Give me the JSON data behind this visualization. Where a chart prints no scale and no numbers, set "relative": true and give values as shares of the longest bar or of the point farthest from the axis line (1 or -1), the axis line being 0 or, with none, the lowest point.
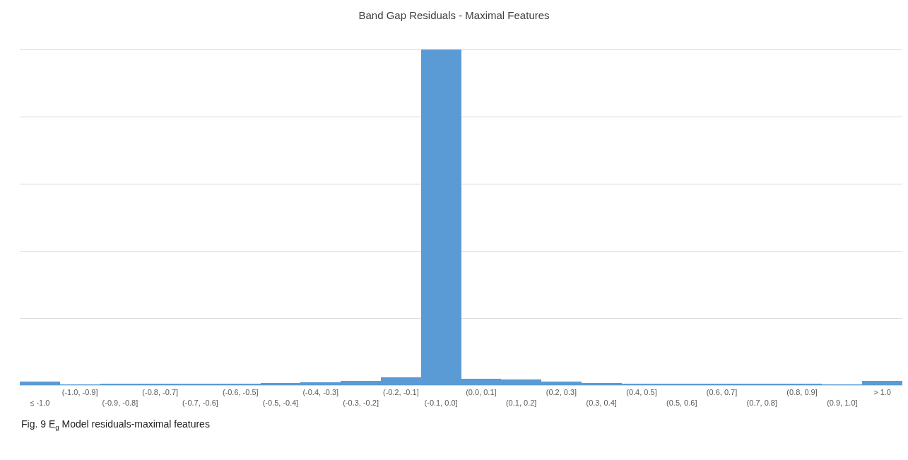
{
  "chart_data": {
    "type": "bar",
    "title": "Band Gap Residuals - Maximal Features",
    "categories": [
      "≤ -1.0",
      "(-1.0, -0.9]",
      "(-0.9, -0.8]",
      "(-0.8, -0.7]",
      "(-0.7, -0.6]",
      "(-0.6, -0.5]",
      "(-0.5, -0.4]",
      "(-0.4, -0.3]",
      "(-0.3, -0.2]",
      "(-0.2, -0.1]",
      "(-0.1, 0.0]",
      "(0.0, 0.1]",
      "(0.1, 0.2]",
      "(0.2, 0.3]",
      "(0.3, 0.4]",
      "(0.4, 0.5]",
      "(0.5, 0.6]",
      "(0.6, 0.7]",
      "(0.7, 0.8]",
      "(0.8, 0.9]",
      "(0.9, 1.0]",
      "> 1.0"
    ],
    "values": [
      0.011,
      0.002,
      0.003,
      0.003,
      0.003,
      0.005,
      0.006,
      0.009,
      0.012,
      0.023,
      1,
      0.018,
      0.016,
      0.011,
      0.007,
      0.005,
      0.004,
      0.004,
      0.003,
      0.003,
      0.002,
      0.013
    ],
    "color": "#5b9bd5",
    "relative": true,
    "grid": "y",
    "annotations": [
      "Fig. 9 E$_{g}$ Model residuals-maximal features"
    ]
  }
}
